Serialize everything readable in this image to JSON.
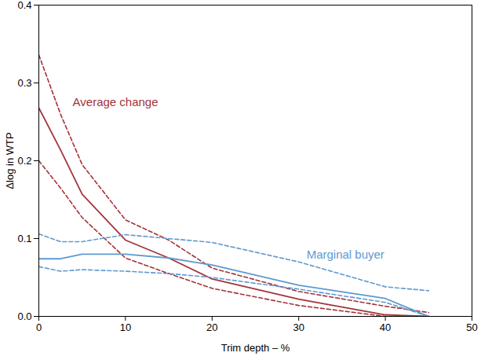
{
  "chart_data": {
    "type": "line",
    "x_label": "Trim depth – %",
    "y_label": "Δlog in WTP",
    "x": [
      0,
      2.5,
      5,
      10,
      15,
      20,
      30,
      40,
      45
    ],
    "series": [
      {
        "name": "Average change",
        "color": "#a4343a",
        "line_style": "solid",
        "values": [
          0.268,
          0.214,
          0.157,
          0.098,
          0.075,
          0.048,
          0.022,
          0.002,
          0.0
        ],
        "lower": [
          0.2,
          0.165,
          0.127,
          0.075,
          0.055,
          0.036,
          0.014,
          0.0,
          0.0
        ],
        "upper": [
          0.336,
          0.26,
          0.195,
          0.124,
          0.098,
          0.062,
          0.032,
          0.013,
          0.005
        ],
        "label": {
          "x": 3.9,
          "y": 0.275
        }
      },
      {
        "name": "Marginal buyer",
        "color": "#5e9ad0",
        "line_style": "solid",
        "values": [
          0.074,
          0.074,
          0.08,
          0.08,
          0.075,
          0.066,
          0.04,
          0.023,
          0.0
        ],
        "lower": [
          0.064,
          0.058,
          0.06,
          0.058,
          0.055,
          0.05,
          0.035,
          0.018,
          0.0
        ],
        "upper": [
          0.106,
          0.096,
          0.096,
          0.105,
          0.1,
          0.095,
          0.07,
          0.038,
          0.033
        ],
        "label": {
          "x": 30.9,
          "y": 0.079
        }
      }
    ],
    "xlim": [
      0,
      50
    ],
    "xticks": [
      0,
      10,
      20,
      30,
      40,
      50
    ],
    "ylim": [
      0,
      0.4
    ],
    "yticks": [
      {
        "value": 0,
        "label": "0.0"
      },
      0.1,
      0.2,
      0.3,
      0.4
    ],
    "grid": false
  }
}
